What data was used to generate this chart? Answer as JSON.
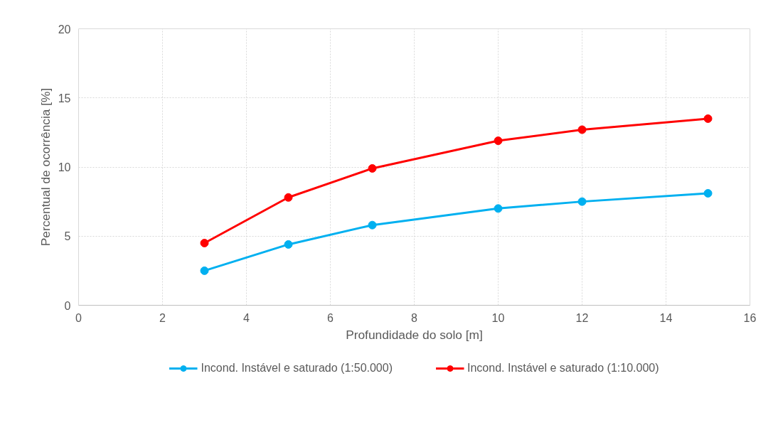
{
  "chart_data": {
    "type": "line",
    "xlabel": "Profundidade do solo [m]",
    "ylabel": "Percentual de ocorrência [%]",
    "x": [
      3,
      5,
      7,
      10,
      12,
      15
    ],
    "series": [
      {
        "name": "Incond. Instável e saturado (1:50.000)",
        "color": "#00b0f0",
        "values": [
          2.5,
          4.4,
          5.8,
          7.0,
          7.5,
          8.1
        ]
      },
      {
        "name": "Incond. Instável e saturado (1:10.000)",
        "color": "#ff0000",
        "values": [
          4.5,
          7.8,
          9.9,
          11.9,
          12.7,
          13.5
        ]
      }
    ],
    "xlim": [
      0,
      16
    ],
    "xticks": [
      0,
      2,
      4,
      6,
      8,
      10,
      12,
      14,
      16
    ],
    "ylim": [
      0,
      20
    ],
    "yticks": [
      0,
      5,
      10,
      15,
      20
    ],
    "grid": true,
    "legend": "bottom",
    "marker": "circle",
    "line_style": "solid"
  }
}
